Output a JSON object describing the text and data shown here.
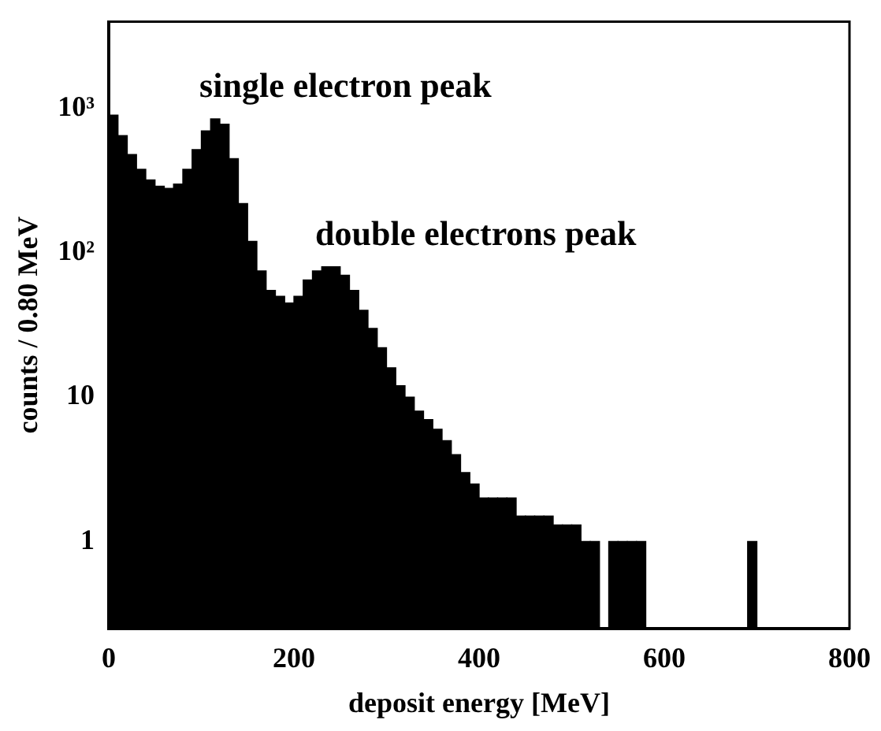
{
  "chart_data": {
    "type": "histogram",
    "xlabel": "deposit energy [MeV]",
    "ylabel": "counts / 0.80 MeV",
    "bins": [
      0,
      10,
      20,
      30,
      40,
      50,
      60,
      70,
      80,
      90,
      100,
      110,
      120,
      130,
      140,
      150,
      160,
      170,
      180,
      190,
      200,
      210,
      220,
      230,
      240,
      250,
      260,
      270,
      280,
      290,
      300,
      310,
      320,
      330,
      340,
      350,
      360,
      370,
      380,
      390,
      400,
      410,
      420,
      430,
      440,
      450,
      460,
      470,
      480,
      490,
      500,
      510,
      520,
      530,
      540,
      550,
      560,
      570,
      580,
      590,
      600,
      610,
      620,
      630,
      640,
      650,
      660,
      670,
      680,
      690,
      700,
      710,
      720,
      730,
      740,
      750,
      760,
      770,
      780,
      790,
      800
    ],
    "values": [
      900,
      650,
      480,
      380,
      320,
      290,
      280,
      300,
      380,
      520,
      700,
      850,
      780,
      450,
      220,
      120,
      75,
      55,
      50,
      45,
      50,
      65,
      75,
      80,
      80,
      70,
      55,
      40,
      30,
      22,
      16,
      12,
      10,
      8,
      7,
      6,
      5,
      4,
      3,
      2.5,
      2,
      2,
      2,
      2,
      1.5,
      1.5,
      1.5,
      1.5,
      1.3,
      1.3,
      1.3,
      1,
      1,
      null,
      1,
      1,
      1,
      1,
      null,
      null,
      null,
      null,
      null,
      null,
      null,
      null,
      null,
      null,
      null,
      1,
      null,
      null,
      null,
      null,
      null,
      null,
      null,
      null,
      null,
      null
    ],
    "color": "#000000",
    "log": "y",
    "xlim": [
      0,
      800
    ],
    "xticks": [
      0,
      200,
      400,
      600,
      800
    ],
    "ylim": [
      0.25,
      4000
    ],
    "yticks": [
      1,
      10,
      {
        "value": 100,
        "label": "10²"
      },
      {
        "value": 1000,
        "label": "10³"
      }
    ],
    "grid": false,
    "legend": false,
    "annotations": [
      {
        "text": "single electron peak",
        "x": 115,
        "y": 850
      },
      {
        "text": "double electrons peak",
        "x": 240,
        "y": 80
      }
    ]
  }
}
